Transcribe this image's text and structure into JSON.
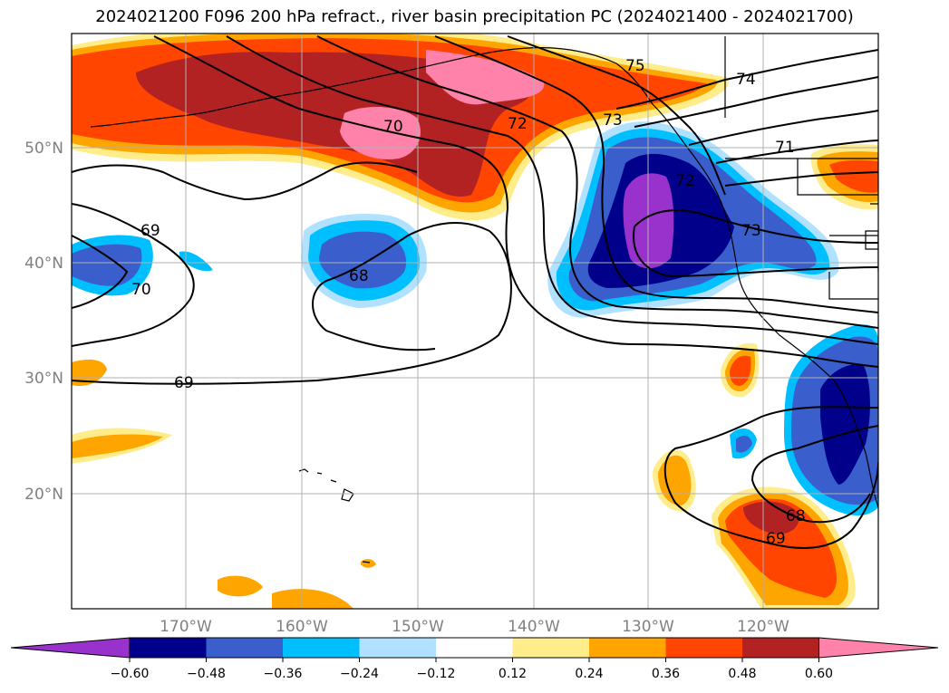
{
  "title": "2024021200 F096 200 hPa refract., river basin precipitation PC (2024021400 - 2024021700)",
  "map": {
    "lat_ticks": [
      "50°N",
      "40°N",
      "30°N",
      "20°N"
    ],
    "lon_ticks": [
      "170°W",
      "160°W",
      "150°W",
      "140°W",
      "130°W",
      "120°W"
    ],
    "contour_labels": [
      "75",
      "74",
      "70",
      "72",
      "73",
      "71",
      "72",
      "73",
      "69",
      "68",
      "70",
      "69",
      "68",
      "69"
    ]
  },
  "colorbar": {
    "ticks": [
      "−0.60",
      "−0.48",
      "−0.36",
      "−0.24",
      "−0.12",
      "0.12",
      "0.24",
      "0.36",
      "0.48",
      "0.60"
    ],
    "colors": [
      "#9932cc",
      "#00008b",
      "#3a5fcd",
      "#00bfff",
      "#b0e2ff",
      "#ffffff",
      "#ffec8b",
      "#ffa500",
      "#ff4500",
      "#b22222",
      "#ff82ab"
    ]
  }
}
